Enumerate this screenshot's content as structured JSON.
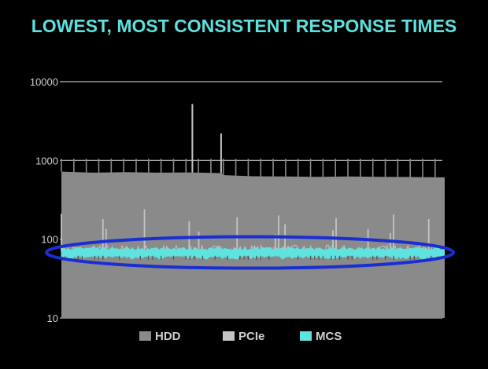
{
  "colors": {
    "background": "#000000",
    "title": "#5ee0dc",
    "axis_text": "#cfcfcf",
    "gridline": "#bdbdbd",
    "hdd": "#8a8a8a",
    "pcie": "#c4c4c4",
    "mcs": "#5fe3de",
    "highlight_ellipse": "#1a2fd1"
  },
  "chart_data": {
    "type": "line",
    "title": "LOWEST, MOST CONSISTENT RESPONSE TIMES",
    "xlabel": "",
    "ylabel": "",
    "yscale": "log",
    "ylim": [
      10,
      10000
    ],
    "ytick_labels": [
      "10",
      "100",
      "1000",
      "10000"
    ],
    "grid": true,
    "legend_position": "bottom",
    "highlight": "blue ellipse around MCS series",
    "x_range": [
      0,
      120
    ],
    "series": [
      {
        "name": "HDD",
        "color_key": "hdd",
        "values": [
          {
            "x": 0,
            "y": 720
          },
          {
            "x": 10,
            "y": 700
          },
          {
            "x": 20,
            "y": 710
          },
          {
            "x": 30,
            "y": 700
          },
          {
            "x": 40,
            "y": 705
          },
          {
            "x": 50,
            "y": 690
          },
          {
            "x": 51,
            "y": 650
          },
          {
            "x": 60,
            "y": 630
          },
          {
            "x": 70,
            "y": 625
          },
          {
            "x": 80,
            "y": 620
          },
          {
            "x": 90,
            "y": 625
          },
          {
            "x": 100,
            "y": 620
          },
          {
            "x": 110,
            "y": 615
          },
          {
            "x": 120,
            "y": 610
          }
        ],
        "periodic_peaks": {
          "y": 1050,
          "every_x": 3.9
        },
        "spikes": [
          {
            "x": 41,
            "y": 5200
          },
          {
            "x": 50,
            "y": 2200
          }
        ]
      },
      {
        "name": "PCIe",
        "color_key": "pcie",
        "baseline": 70,
        "spikes": [
          {
            "x": 0,
            "y": 210
          },
          {
            "x": 13,
            "y": 180
          },
          {
            "x": 14,
            "y": 135
          },
          {
            "x": 26,
            "y": 240
          },
          {
            "x": 40,
            "y": 170
          },
          {
            "x": 43,
            "y": 125
          },
          {
            "x": 55,
            "y": 190
          },
          {
            "x": 67,
            "y": 115
          },
          {
            "x": 68,
            "y": 200
          },
          {
            "x": 70,
            "y": 155
          },
          {
            "x": 85,
            "y": 130
          },
          {
            "x": 86,
            "y": 185
          },
          {
            "x": 96,
            "y": 135
          },
          {
            "x": 103,
            "y": 120
          },
          {
            "x": 104,
            "y": 205
          },
          {
            "x": 115,
            "y": 180
          }
        ]
      },
      {
        "name": "MCS",
        "color_key": "mcs",
        "range": [
          55,
          80
        ]
      }
    ]
  }
}
